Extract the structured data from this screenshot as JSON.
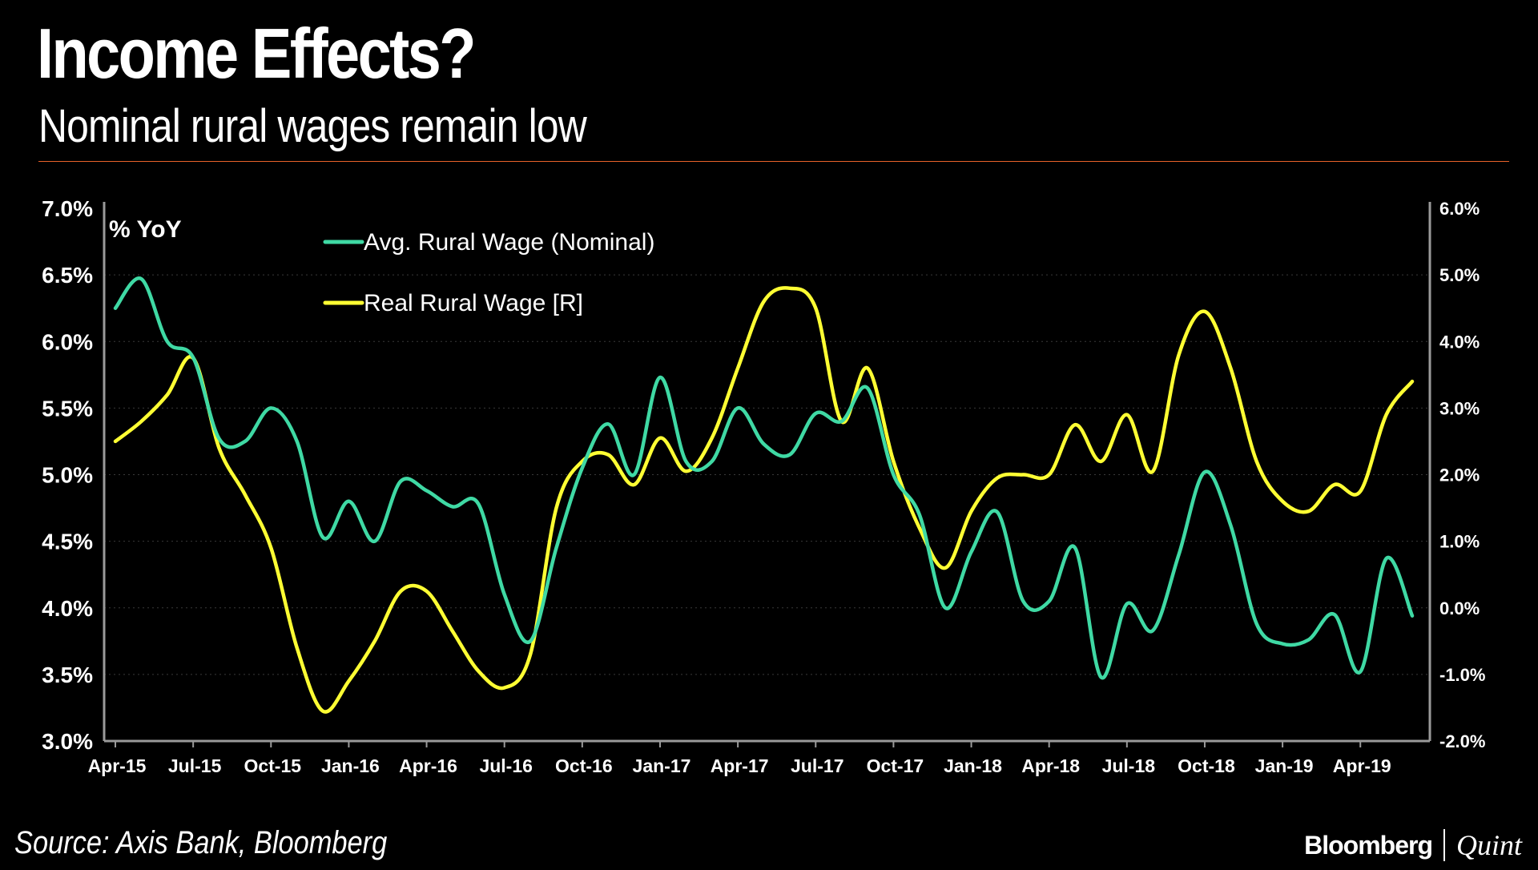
{
  "title": "Income Effects?",
  "subtitle": "Nominal rural wages remain low",
  "source": "Source: Axis Bank, Bloomberg",
  "brand": {
    "primary": "Bloomberg",
    "secondary": "Quint"
  },
  "colors": {
    "nominal": "#3fd9a4",
    "real": "#ffff33",
    "rule": "#e8622a",
    "axis": "#9a9a9a"
  },
  "chart_data": {
    "type": "line",
    "unit_label": "% YoY",
    "x_tick_labels": [
      "Apr-15",
      "Jul-15",
      "Oct-15",
      "Jan-16",
      "Apr-16",
      "Jul-16",
      "Oct-16",
      "Jan-17",
      "Apr-17",
      "Jul-17",
      "Oct-17",
      "Jan-18",
      "Apr-18",
      "Jul-18",
      "Oct-18",
      "Jan-19",
      "Apr-19"
    ],
    "x": [
      "Apr-15",
      "May-15",
      "Jun-15",
      "Jul-15",
      "Aug-15",
      "Sep-15",
      "Oct-15",
      "Nov-15",
      "Dec-15",
      "Jan-16",
      "Feb-16",
      "Mar-16",
      "Apr-16",
      "May-16",
      "Jun-16",
      "Jul-16",
      "Aug-16",
      "Sep-16",
      "Oct-16",
      "Nov-16",
      "Dec-16",
      "Jan-17",
      "Feb-17",
      "Mar-17",
      "Apr-17",
      "May-17",
      "Jun-17",
      "Jul-17",
      "Aug-17",
      "Sep-17",
      "Oct-17",
      "Nov-17",
      "Dec-17",
      "Jan-18",
      "Feb-18",
      "Mar-18",
      "Apr-18",
      "May-18",
      "Jun-18",
      "Jul-18",
      "Aug-18",
      "Sep-18",
      "Oct-18",
      "Nov-18",
      "Dec-18",
      "Jan-19",
      "Feb-19",
      "Mar-19",
      "Apr-19",
      "May-19",
      "Jun-19"
    ],
    "left_axis": {
      "ylim": [
        3.0,
        7.0
      ],
      "ticks": [
        "7.0%",
        "6.5%",
        "6.0%",
        "5.5%",
        "5.0%",
        "4.5%",
        "4.0%",
        "3.5%",
        "3.0%"
      ]
    },
    "right_axis": {
      "ylim": [
        -2.0,
        6.0
      ],
      "ticks": [
        "6.0%",
        "5.0%",
        "4.0%",
        "3.0%",
        "2.0%",
        "1.0%",
        "0.0%",
        "-1.0%",
        "-2.0%"
      ]
    },
    "legend": [
      "Avg. Rural Wage (Nominal)",
      "Real Rural Wage [R]"
    ],
    "series": [
      {
        "name": "Avg. Rural Wage (Nominal)",
        "axis": "left",
        "values": [
          6.25,
          6.47,
          6.0,
          5.88,
          5.27,
          5.25,
          5.5,
          5.25,
          4.53,
          4.8,
          4.5,
          4.95,
          4.88,
          4.76,
          4.78,
          4.1,
          3.75,
          4.45,
          5.05,
          5.38,
          5.0,
          5.73,
          5.1,
          5.1,
          5.5,
          5.23,
          5.15,
          5.46,
          5.4,
          5.65,
          5.0,
          4.7,
          4.0,
          4.42,
          4.72,
          4.05,
          4.05,
          4.45,
          3.48,
          4.03,
          3.83,
          4.4,
          5.02,
          4.62,
          3.88,
          3.73,
          3.76,
          3.95,
          3.52,
          4.37,
          3.94
        ]
      },
      {
        "name": "Real Rural Wage [R]",
        "axis": "right",
        "values": [
          2.5,
          2.8,
          3.2,
          3.75,
          2.4,
          1.7,
          0.9,
          -0.6,
          -1.55,
          -1.1,
          -0.5,
          0.25,
          0.25,
          -0.35,
          -0.95,
          -1.2,
          -0.7,
          1.5,
          2.2,
          2.3,
          1.85,
          2.55,
          2.05,
          2.55,
          3.6,
          4.6,
          4.8,
          4.5,
          2.8,
          3.6,
          2.2,
          1.2,
          0.6,
          1.45,
          1.95,
          2.0,
          2.0,
          2.75,
          2.2,
          2.9,
          2.05,
          3.8,
          4.45,
          3.6,
          2.2,
          1.6,
          1.45,
          1.85,
          1.75,
          2.9,
          3.4
        ]
      }
    ]
  }
}
